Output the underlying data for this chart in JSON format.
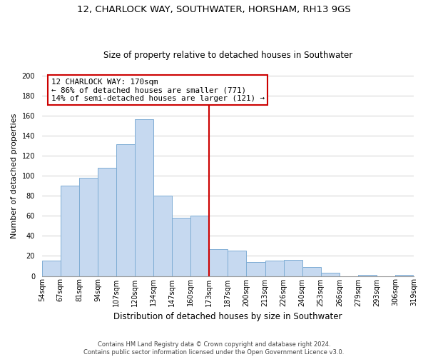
{
  "title": "12, CHARLOCK WAY, SOUTHWATER, HORSHAM, RH13 9GS",
  "subtitle": "Size of property relative to detached houses in Southwater",
  "xlabel": "Distribution of detached houses by size in Southwater",
  "ylabel": "Number of detached properties",
  "bin_labels": [
    "54sqm",
    "67sqm",
    "81sqm",
    "94sqm",
    "107sqm",
    "120sqm",
    "134sqm",
    "147sqm",
    "160sqm",
    "173sqm",
    "187sqm",
    "200sqm",
    "213sqm",
    "226sqm",
    "240sqm",
    "253sqm",
    "266sqm",
    "279sqm",
    "293sqm",
    "306sqm",
    "319sqm"
  ],
  "bar_values": [
    15,
    90,
    98,
    108,
    131,
    156,
    80,
    58,
    60,
    27,
    25,
    14,
    15,
    16,
    9,
    3,
    0,
    1,
    0,
    1
  ],
  "bar_color": "#c6d9f0",
  "bar_edge_color": "#7eadd4",
  "vline_x_idx": 9,
  "vline_color": "#cc0000",
  "annotation_line1": "12 CHARLOCK WAY: 170sqm",
  "annotation_line2": "← 86% of detached houses are smaller (771)",
  "annotation_line3": "14% of semi-detached houses are larger (121) →",
  "annotation_box_color": "#ffffff",
  "annotation_box_edge": "#cc0000",
  "footer": "Contains HM Land Registry data © Crown copyright and database right 2024.\nContains public sector information licensed under the Open Government Licence v3.0.",
  "ylim": [
    0,
    200
  ],
  "yticks": [
    0,
    20,
    40,
    60,
    80,
    100,
    120,
    140,
    160,
    180,
    200
  ],
  "bg_color": "#ffffff",
  "grid_color": "#c8c8c8",
  "title_fontsize": 9.5,
  "subtitle_fontsize": 8.5,
  "xlabel_fontsize": 8.5,
  "ylabel_fontsize": 8,
  "footer_fontsize": 6,
  "tick_fontsize": 7,
  "annot_fontsize": 7.8
}
